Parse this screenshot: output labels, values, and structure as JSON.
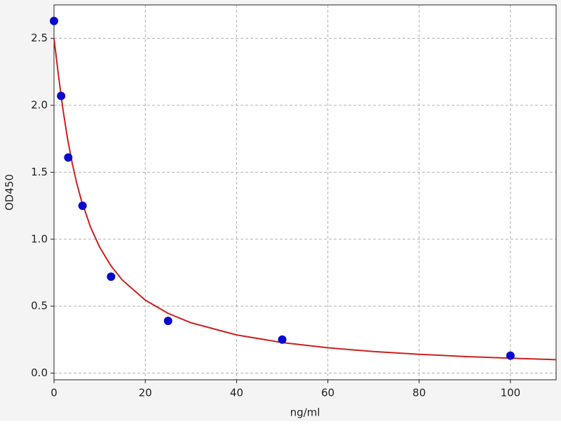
{
  "chart_data": {
    "type": "scatter",
    "xlabel": "ng/ml",
    "ylabel": "OD450",
    "xlim": [
      0,
      110
    ],
    "ylim": [
      -0.05,
      2.75
    ],
    "xticks": [
      0,
      20,
      40,
      60,
      80,
      100
    ],
    "yticks": [
      {
        "value": 0,
        "label": "0.0"
      },
      0.5,
      {
        "value": 1,
        "label": "1.0"
      },
      1.5,
      {
        "value": 2,
        "label": "2.0"
      },
      2.5
    ],
    "grid": true,
    "series": [
      {
        "type": "scatter",
        "color": "#0a0acc",
        "x": [
          0,
          1.5625,
          3.125,
          6.25,
          12.5,
          25,
          50,
          100
        ],
        "values": [
          2.63,
          2.07,
          1.61,
          1.25,
          0.72,
          0.39,
          0.25,
          0.13
        ]
      },
      {
        "type": "line",
        "color": "#cc2020",
        "x": [
          0,
          1,
          2,
          3,
          4,
          5,
          6,
          8,
          10,
          12.5,
          15,
          20,
          25,
          30,
          40,
          50,
          60,
          70,
          80,
          90,
          100,
          110
        ],
        "values": [
          2.5,
          2.218,
          1.961,
          1.745,
          1.566,
          1.416,
          1.29,
          1.091,
          0.941,
          0.8,
          0.694,
          0.545,
          0.446,
          0.376,
          0.285,
          0.228,
          0.189,
          0.161,
          0.14,
          0.124,
          0.111,
          0.1
        ]
      }
    ]
  }
}
